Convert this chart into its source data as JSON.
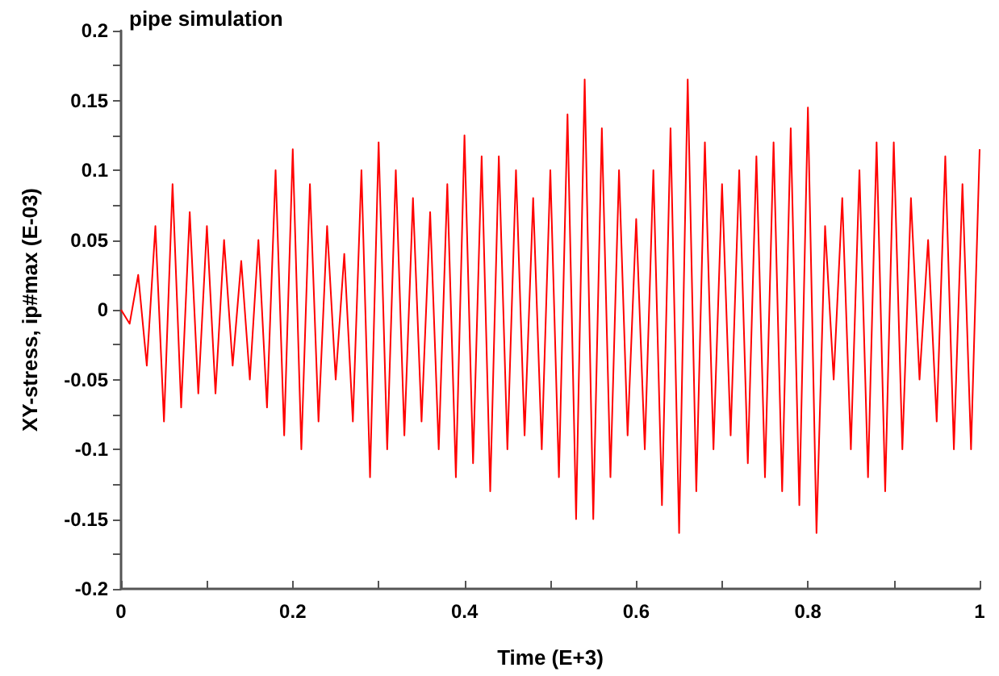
{
  "chart_data": {
    "type": "line",
    "title": "pipe simulation",
    "xlabel": "Time (E+3)",
    "ylabel": "XY-stress, ip#max (E-03)",
    "xlim": [
      0,
      1
    ],
    "xticks": [
      0,
      {
        "value": 0.1,
        "label": null
      },
      0.2,
      {
        "value": 0.3,
        "label": null
      },
      0.4,
      {
        "value": 0.5,
        "label": null
      },
      0.6,
      {
        "value": 0.7,
        "label": null
      },
      0.8,
      {
        "value": 0.9,
        "label": null
      },
      1
    ],
    "ylim": [
      -0.2,
      0.2
    ],
    "yticks": [
      -0.2,
      {
        "value": -0.175,
        "label": null
      },
      -0.15,
      {
        "value": -0.125,
        "label": null
      },
      -0.1,
      {
        "value": -0.075,
        "label": null
      },
      -0.05,
      {
        "value": -0.025,
        "label": null
      },
      0,
      {
        "value": 0.025,
        "label": null
      },
      0.05,
      {
        "value": 0.075,
        "label": null
      },
      0.1,
      {
        "value": 0.125,
        "label": null
      },
      0.15,
      {
        "value": 0.175,
        "label": null
      },
      0.2
    ],
    "grid": false,
    "marker": "none",
    "line_style": "solid",
    "x": [
      0,
      0.01,
      0.02,
      0.03,
      0.04,
      0.05,
      0.06,
      0.07,
      0.08,
      0.09,
      0.1,
      0.11,
      0.12,
      0.13,
      0.14,
      0.15,
      0.16,
      0.17,
      0.18,
      0.19,
      0.2,
      0.21,
      0.22,
      0.23,
      0.24,
      0.25,
      0.26,
      0.27,
      0.28,
      0.29,
      0.3,
      0.31,
      0.32,
      0.33,
      0.34,
      0.35,
      0.36,
      0.37,
      0.38,
      0.39,
      0.4,
      0.41,
      0.42,
      0.43,
      0.44,
      0.45,
      0.46,
      0.47,
      0.48,
      0.49,
      0.5,
      0.51,
      0.52,
      0.53,
      0.54,
      0.55,
      0.56,
      0.57,
      0.58,
      0.59,
      0.6,
      0.61,
      0.62,
      0.63,
      0.64,
      0.65,
      0.66,
      0.67,
      0.68,
      0.69,
      0.7,
      0.71,
      0.72,
      0.73,
      0.74,
      0.75,
      0.76,
      0.77,
      0.78,
      0.79,
      0.8,
      0.81,
      0.82,
      0.83,
      0.84,
      0.85,
      0.86,
      0.87,
      0.88,
      0.89,
      0.9,
      0.91,
      0.92,
      0.93,
      0.94,
      0.95,
      0.96,
      0.97,
      0.98,
      0.99,
      1
    ],
    "series": [
      {
        "color": "#ff0000",
        "values": [
          0,
          -0.01,
          0.025,
          -0.04,
          0.06,
          -0.08,
          0.09,
          -0.07,
          0.07,
          -0.06,
          0.06,
          -0.06,
          0.05,
          -0.04,
          0.035,
          -0.05,
          0.05,
          -0.07,
          0.1,
          -0.09,
          0.115,
          -0.1,
          0.09,
          -0.08,
          0.06,
          -0.05,
          0.04,
          -0.08,
          0.1,
          -0.12,
          0.12,
          -0.1,
          0.1,
          -0.09,
          0.08,
          -0.08,
          0.07,
          -0.1,
          0.09,
          -0.12,
          0.125,
          -0.11,
          0.11,
          -0.13,
          0.11,
          -0.1,
          0.1,
          -0.09,
          0.08,
          -0.1,
          0.1,
          -0.12,
          0.14,
          -0.15,
          0.165,
          -0.15,
          0.13,
          -0.12,
          0.1,
          -0.09,
          0.065,
          -0.1,
          0.1,
          -0.14,
          0.13,
          -0.16,
          0.165,
          -0.13,
          0.12,
          -0.1,
          0.09,
          -0.09,
          0.1,
          -0.11,
          0.11,
          -0.12,
          0.12,
          -0.13,
          0.13,
          -0.14,
          0.145,
          -0.16,
          0.06,
          -0.05,
          0.08,
          -0.1,
          0.1,
          -0.12,
          0.12,
          -0.13,
          0.12,
          -0.1,
          0.08,
          -0.05,
          0.05,
          -0.08,
          0.11,
          -0.1,
          0.09,
          -0.1,
          0.115
        ]
      }
    ]
  }
}
